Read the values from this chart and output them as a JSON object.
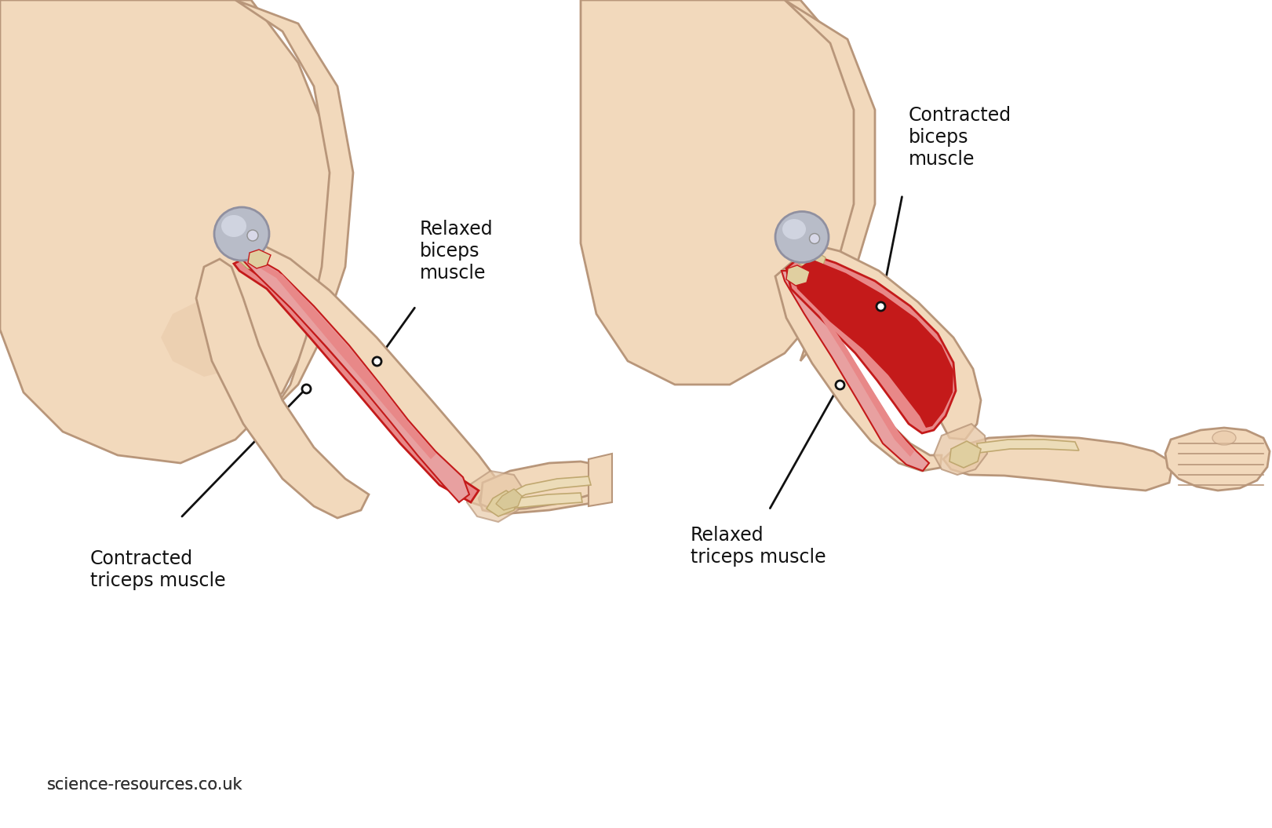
{
  "background_color": "#ffffff",
  "skin_color": "#f2d9bc",
  "skin_outline_color": "#b8967a",
  "skin_dark": "#e8c9a8",
  "muscle_red_dark": "#c41a1a",
  "muscle_red_light": "#e88888",
  "muscle_red_mid": "#d94040",
  "muscle_pink": "#e8a0a0",
  "bone_color": "#ecdcb8",
  "bone_outline": "#c0a870",
  "tendon_color": "#e0cfa0",
  "cartilage_color": "#b8bcc8",
  "cartilage_light": "#d0d4e0",
  "line_color": "#111111",
  "text_color": "#111111",
  "watermark_color": "#333333",
  "watermark_text": "science-resources.co.uk",
  "label_relaxed_biceps": "Relaxed\nbiceps\nmuscle",
  "label_contracted_biceps": "Contracted\nbiceps\nmuscle",
  "label_relaxed_triceps": "Relaxed\ntriceps muscle",
  "label_contracted_triceps": "Contracted\ntriceps muscle",
  "label_fontsize": 17,
  "watermark_fontsize": 15,
  "fig_width": 16.21,
  "fig_height": 10.55
}
